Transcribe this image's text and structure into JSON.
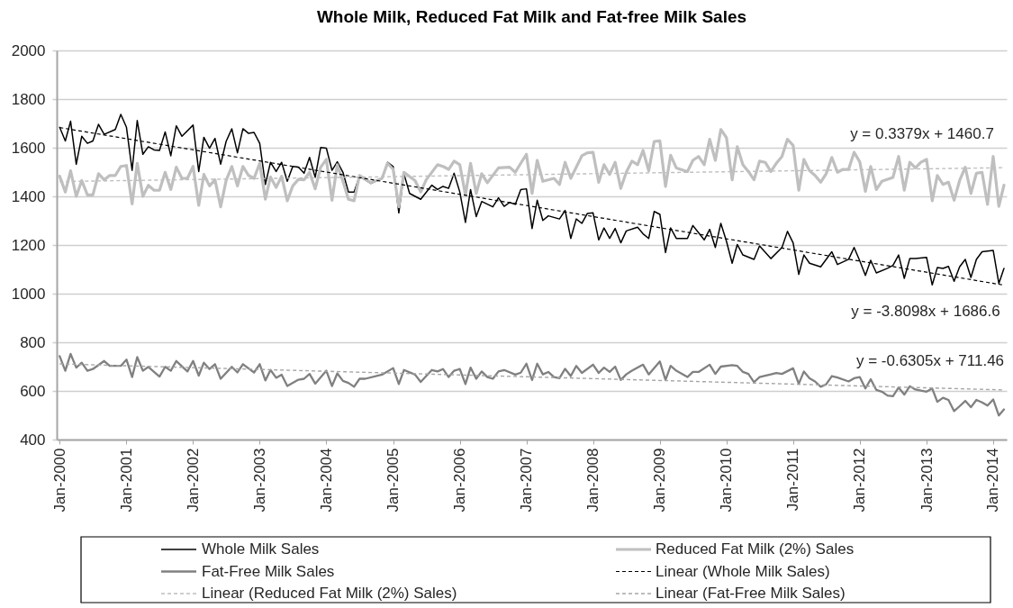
{
  "chart_data": {
    "type": "line",
    "title": "Whole Milk, Reduced Fat Milk and Fat-free Milk Sales",
    "xlim": [
      "1999-12-16",
      "2014-03-16"
    ],
    "xticks": [
      {
        "value": "2000-01",
        "label": "Jan-2000"
      },
      {
        "value": "2001-01",
        "label": "Jan-2001"
      },
      {
        "value": "2002-01",
        "label": "Jan-2002"
      },
      {
        "value": "2003-01",
        "label": "Jan-2003"
      },
      {
        "value": "2004-01",
        "label": "Jan-2004"
      },
      {
        "value": "2005-01",
        "label": "Jan-2005"
      },
      {
        "value": "2006-01",
        "label": "Jan-2006"
      },
      {
        "value": "2007-01",
        "label": "Jan-2007"
      },
      {
        "value": "2008-01",
        "label": "Jan-2008"
      },
      {
        "value": "2009-01",
        "label": "Jan-2009"
      },
      {
        "value": "2010-01",
        "label": "Jan-2010"
      },
      {
        "value": "2011-01",
        "label": "Jan-2011"
      },
      {
        "value": "2012-01",
        "label": "Jan-2012"
      },
      {
        "value": "2013-01",
        "label": "Jan-2013"
      },
      {
        "value": "2014-01",
        "label": "Jan-2014"
      }
    ],
    "ylim": [
      400,
      2000
    ],
    "yticks": [
      400,
      600,
      800,
      1000,
      1200,
      1400,
      1600,
      1800,
      2000
    ],
    "grid": "y",
    "legend": "bottom",
    "line_style": "solid",
    "series": [
      {
        "name": "Whole Milk Sales",
        "color": "#000000",
        "x": [
          "2000-01",
          "2000-02",
          "2000-03",
          "2000-04",
          "2000-05",
          "2000-06",
          "2000-07",
          "2000-08",
          "2000-09",
          "2000-11",
          "2000-12",
          "2001-01",
          "2001-02",
          "2001-03",
          "2001-04",
          "2001-05",
          "2001-06",
          "2001-07",
          "2001-08",
          "2001-09",
          "2001-10",
          "2001-11",
          "2002-01",
          "2002-02",
          "2002-03",
          "2002-04",
          "2002-05",
          "2002-06",
          "2002-07",
          "2002-08",
          "2002-09",
          "2002-10",
          "2002-11",
          "2002-12",
          "2003-01",
          "2003-02",
          "2003-03",
          "2003-04",
          "2003-05",
          "2003-06",
          "2003-07",
          "2003-08",
          "2003-09",
          "2003-10",
          "2003-11",
          "2003-12",
          "2004-01",
          "2004-02",
          "2004-03",
          "2004-04",
          "2004-05",
          "2004-06",
          "2004-07",
          "2004-09",
          "2004-11",
          "2004-12",
          "2005-01",
          "2005-02",
          "2005-03",
          "2005-04",
          "2005-06",
          "2005-08",
          "2005-09",
          "2005-10",
          "2005-11",
          "2005-12",
          "2006-01",
          "2006-02",
          "2006-03",
          "2006-04",
          "2006-05",
          "2006-07",
          "2006-08",
          "2006-09",
          "2006-10",
          "2006-11",
          "2006-12",
          "2007-01",
          "2007-02",
          "2007-03",
          "2007-04",
          "2007-05",
          "2007-07",
          "2007-08",
          "2007-09",
          "2007-10",
          "2007-11",
          "2007-12",
          "2008-01",
          "2008-02",
          "2008-03",
          "2008-04",
          "2008-05",
          "2008-06",
          "2008-07",
          "2008-09",
          "2008-10",
          "2008-11",
          "2008-12",
          "2009-01",
          "2009-02",
          "2009-03",
          "2009-04",
          "2009-06",
          "2009-07",
          "2009-09",
          "2009-10",
          "2009-11",
          "2009-12",
          "2010-01",
          "2010-02",
          "2010-03",
          "2010-04",
          "2010-06",
          "2010-07",
          "2010-09",
          "2010-11",
          "2010-12",
          "2011-01",
          "2011-02",
          "2011-03",
          "2011-04",
          "2011-06",
          "2011-08",
          "2011-09",
          "2011-11",
          "2011-12",
          "2012-01",
          "2012-02",
          "2012-03",
          "2012-04",
          "2012-06",
          "2012-07",
          "2012-08",
          "2012-09",
          "2012-10",
          "2012-11",
          "2013-01",
          "2013-02",
          "2013-03",
          "2013-04",
          "2013-05",
          "2013-06",
          "2013-07",
          "2013-08",
          "2013-09",
          "2013-10",
          "2013-11",
          "2014-01",
          "2014-02",
          "2014-03"
        ],
        "values": [
          1684,
          1628,
          1709,
          1532,
          1647,
          1618,
          1628,
          1696,
          1655,
          1675,
          1737,
          1684,
          1507,
          1712,
          1573,
          1604,
          1591,
          1589,
          1665,
          1567,
          1690,
          1647,
          1693,
          1502,
          1643,
          1598,
          1638,
          1532,
          1626,
          1678,
          1579,
          1678,
          1659,
          1663,
          1618,
          1449,
          1540,
          1502,
          1540,
          1462,
          1523,
          1520,
          1495,
          1560,
          1478,
          1601,
          1598,
          1507,
          1542,
          1499,
          1418,
          1418,
          1483,
          1453,
          1474,
          1540,
          1523,
          1332,
          1493,
          1412,
          1388,
          1446,
          1428,
          1441,
          1433,
          1495,
          1418,
          1293,
          1428,
          1317,
          1379,
          1357,
          1394,
          1359,
          1375,
          1367,
          1428,
          1431,
          1268,
          1384,
          1301,
          1320,
          1307,
          1342,
          1227,
          1307,
          1289,
          1330,
          1332,
          1221,
          1270,
          1227,
          1268,
          1209,
          1258,
          1273,
          1246,
          1227,
          1338,
          1326,
          1169,
          1270,
          1227,
          1227,
          1280,
          1221,
          1264,
          1190,
          1289,
          1215,
          1125,
          1202,
          1159,
          1141,
          1196,
          1144,
          1190,
          1256,
          1209,
          1079,
          1159,
          1125,
          1110,
          1172,
          1120,
          1141,
          1190,
          1135,
          1075,
          1137,
          1085,
          1104,
          1116,
          1159,
          1063,
          1144,
          1144,
          1149,
          1036,
          1107,
          1104,
          1112,
          1051,
          1110,
          1141,
          1067,
          1141,
          1172,
          1178,
          1042,
          1104
        ]
      },
      {
        "name": "Reduced Fat Milk (2%) Sales",
        "color": "#bfbfbf",
        "x": [
          "2000-01",
          "2000-02",
          "2000-03",
          "2000-04",
          "2000-05",
          "2000-06",
          "2000-07",
          "2000-08",
          "2000-09",
          "2000-10",
          "2000-11",
          "2000-12",
          "2001-01",
          "2001-02",
          "2001-03",
          "2001-04",
          "2001-05",
          "2001-06",
          "2001-07",
          "2001-08",
          "2001-09",
          "2001-10",
          "2001-11",
          "2001-12",
          "2002-01",
          "2002-02",
          "2002-03",
          "2002-04",
          "2002-05",
          "2002-06",
          "2002-07",
          "2002-08",
          "2002-09",
          "2002-10",
          "2002-11",
          "2002-12",
          "2003-01",
          "2003-02",
          "2003-03",
          "2003-04",
          "2003-05",
          "2003-06",
          "2003-07",
          "2003-08",
          "2003-09",
          "2003-10",
          "2003-11",
          "2003-12",
          "2004-01",
          "2004-02",
          "2004-03",
          "2004-04",
          "2004-05",
          "2004-06",
          "2004-07",
          "2004-09",
          "2004-11",
          "2004-12",
          "2005-01",
          "2005-02",
          "2005-03",
          "2005-05",
          "2005-06",
          "2005-07",
          "2005-09",
          "2005-10",
          "2005-11",
          "2005-12",
          "2006-01",
          "2006-02",
          "2006-03",
          "2006-04",
          "2006-05",
          "2006-06",
          "2006-08",
          "2006-10",
          "2006-11",
          "2006-12",
          "2007-01",
          "2007-02",
          "2007-03",
          "2007-04",
          "2007-06",
          "2007-07",
          "2007-08",
          "2007-09",
          "2007-11",
          "2007-12",
          "2008-01",
          "2008-02",
          "2008-03",
          "2008-04",
          "2008-05",
          "2008-06",
          "2008-07",
          "2008-08",
          "2008-09",
          "2008-10",
          "2008-11",
          "2008-12",
          "2009-01",
          "2009-02",
          "2009-03",
          "2009-04",
          "2009-06",
          "2009-07",
          "2009-08",
          "2009-09",
          "2009-10",
          "2009-11",
          "2009-12",
          "2010-01",
          "2010-02",
          "2010-03",
          "2010-04",
          "2010-05",
          "2010-06",
          "2010-07",
          "2010-08",
          "2010-09",
          "2010-10",
          "2010-11",
          "2010-12",
          "2011-01",
          "2011-02",
          "2011-03",
          "2011-04",
          "2011-05",
          "2011-06",
          "2011-07",
          "2011-08",
          "2011-09",
          "2011-10",
          "2011-11",
          "2011-12",
          "2012-01",
          "2012-02",
          "2012-03",
          "2012-04",
          "2012-05",
          "2012-07",
          "2012-08",
          "2012-09",
          "2012-10",
          "2012-11",
          "2012-12",
          "2013-01",
          "2013-02",
          "2013-03",
          "2013-04",
          "2013-05",
          "2013-06",
          "2013-07",
          "2013-08",
          "2013-09",
          "2013-10",
          "2013-11",
          "2013-12",
          "2014-01",
          "2014-02",
          "2014-03"
        ],
        "values": [
          1483,
          1418,
          1505,
          1400,
          1465,
          1406,
          1406,
          1493,
          1468,
          1486,
          1486,
          1523,
          1527,
          1369,
          1536,
          1400,
          1446,
          1425,
          1425,
          1499,
          1428,
          1520,
          1474,
          1474,
          1523,
          1363,
          1490,
          1443,
          1468,
          1357,
          1465,
          1523,
          1443,
          1523,
          1486,
          1474,
          1536,
          1388,
          1480,
          1437,
          1483,
          1382,
          1443,
          1470,
          1468,
          1499,
          1431,
          1520,
          1552,
          1384,
          1530,
          1462,
          1388,
          1382,
          1486,
          1456,
          1474,
          1536,
          1511,
          1357,
          1499,
          1465,
          1418,
          1468,
          1530,
          1523,
          1511,
          1545,
          1530,
          1406,
          1536,
          1412,
          1493,
          1456,
          1517,
          1520,
          1499,
          1536,
          1573,
          1412,
          1548,
          1462,
          1474,
          1449,
          1540,
          1474,
          1567,
          1579,
          1581,
          1458,
          1530,
          1490,
          1540,
          1433,
          1499,
          1545,
          1530,
          1589,
          1505,
          1626,
          1628,
          1441,
          1569,
          1517,
          1502,
          1548,
          1564,
          1530,
          1635,
          1548,
          1675,
          1641,
          1468,
          1604,
          1530,
          1502,
          1468,
          1545,
          1540,
          1502,
          1536,
          1564,
          1635,
          1610,
          1425,
          1552,
          1505,
          1486,
          1458,
          1493,
          1560,
          1499,
          1511,
          1511,
          1581,
          1542,
          1421,
          1523,
          1428,
          1462,
          1478,
          1564,
          1425,
          1540,
          1517,
          1540,
          1552,
          1382,
          1486,
          1449,
          1458,
          1384,
          1465,
          1520,
          1412,
          1495,
          1499,
          1367,
          1564,
          1359,
          1446
        ]
      },
      {
        "name": "Fat-Free Milk Sales",
        "color": "#808080",
        "x": [
          "2000-01",
          "2000-02",
          "2000-03",
          "2000-04",
          "2000-05",
          "2000-06",
          "2000-07",
          "2000-09",
          "2000-10",
          "2000-12",
          "2001-01",
          "2001-02",
          "2001-03",
          "2001-04",
          "2001-05",
          "2001-07",
          "2001-08",
          "2001-09",
          "2001-10",
          "2001-12",
          "2002-01",
          "2002-02",
          "2002-03",
          "2002-04",
          "2002-05",
          "2002-06",
          "2002-08",
          "2002-09",
          "2002-10",
          "2002-12",
          "2003-01",
          "2003-02",
          "2003-03",
          "2003-04",
          "2003-05",
          "2003-06",
          "2003-08",
          "2003-09",
          "2003-10",
          "2003-11",
          "2004-01",
          "2004-02",
          "2004-03",
          "2004-04",
          "2004-05",
          "2004-06",
          "2004-07",
          "2004-08",
          "2004-11",
          "2005-01",
          "2005-02",
          "2005-03",
          "2005-05",
          "2005-06",
          "2005-08",
          "2005-09",
          "2005-10",
          "2005-11",
          "2005-12",
          "2006-01",
          "2006-02",
          "2006-03",
          "2006-04",
          "2006-05",
          "2006-06",
          "2006-07",
          "2006-08",
          "2006-09",
          "2006-11",
          "2006-12",
          "2007-01",
          "2007-02",
          "2007-03",
          "2007-04",
          "2007-05",
          "2007-06",
          "2007-07",
          "2007-08",
          "2007-09",
          "2007-10",
          "2007-11",
          "2008-01",
          "2008-02",
          "2008-03",
          "2008-04",
          "2008-05",
          "2008-06",
          "2008-07",
          "2008-08",
          "2008-10",
          "2008-11",
          "2009-01",
          "2009-02",
          "2009-03",
          "2009-04",
          "2009-06",
          "2009-07",
          "2009-08",
          "2009-10",
          "2009-11",
          "2009-12",
          "2010-02",
          "2010-03",
          "2010-04",
          "2010-05",
          "2010-06",
          "2010-07",
          "2010-09",
          "2010-10",
          "2010-11",
          "2011-01",
          "2011-02",
          "2011-03",
          "2011-04",
          "2011-05",
          "2011-06",
          "2011-07",
          "2011-08",
          "2011-09",
          "2011-11",
          "2011-12",
          "2012-01",
          "2012-02",
          "2012-03",
          "2012-04",
          "2012-05",
          "2012-06",
          "2012-07",
          "2012-08",
          "2012-09",
          "2012-10",
          "2012-11",
          "2013-01",
          "2013-02",
          "2013-03",
          "2013-04",
          "2013-05",
          "2013-06",
          "2013-07",
          "2013-08",
          "2013-09",
          "2013-10",
          "2013-11",
          "2013-12",
          "2014-01",
          "2014-02",
          "2014-03"
        ],
        "values": [
          743,
          683,
          752,
          696,
          716,
          683,
          690,
          723,
          703,
          703,
          729,
          657,
          739,
          683,
          699,
          659,
          699,
          683,
          723,
          680,
          723,
          663,
          716,
          690,
          710,
          650,
          699,
          676,
          710,
          676,
          710,
          643,
          686,
          654,
          667,
          620,
          646,
          650,
          670,
          630,
          683,
          620,
          672,
          641,
          633,
          617,
          650,
          650,
          667,
          694,
          628,
          686,
          667,
          637,
          686,
          680,
          690,
          657,
          683,
          690,
          628,
          696,
          650,
          680,
          657,
          650,
          680,
          686,
          667,
          675,
          712,
          645,
          712,
          668,
          678,
          657,
          652,
          691,
          661,
          703,
          674,
          708,
          674,
          696,
          678,
          700,
          645,
          668,
          683,
          708,
          668,
          721,
          645,
          703,
          683,
          657,
          678,
          678,
          708,
          670,
          700,
          706,
          703,
          678,
          670,
          636,
          657,
          668,
          674,
          670,
          693,
          629,
          680,
          652,
          639,
          617,
          627,
          661,
          655,
          639,
          652,
          657,
          610,
          648,
          604,
          597,
          581,
          578,
          614,
          585,
          619,
          606,
          597,
          610,
          555,
          572,
          563,
          517,
          537,
          559,
          533,
          563,
          553,
          540,
          565,
          499,
          524
        ]
      },
      {
        "name": "Linear (Whole Milk Sales)",
        "type": "line",
        "line_style": "dashed",
        "color": "#000000",
        "x": [
          "2000-01",
          "2014-03"
        ],
        "values": [
          1683,
          1035
        ]
      },
      {
        "name": "Linear (Reduced Fat Milk (2%) Sales)",
        "type": "line",
        "line_style": "dashed",
        "color": "#bfbfbf",
        "x": [
          "2000-01",
          "2014-03"
        ],
        "values": [
          1461,
          1518
        ]
      },
      {
        "name": "Linear (Fat-Free Milk Sales)",
        "type": "line",
        "line_style": "dashed",
        "color": "#a6a6a6",
        "x": [
          "2000-01",
          "2014-03"
        ],
        "values": [
          711,
          604
        ]
      }
    ],
    "annotations": [
      "y = 0.3379x + 1460.7",
      "y = -3.8098x + 1686.6",
      "y = -0.6305x + 711.46"
    ]
  }
}
